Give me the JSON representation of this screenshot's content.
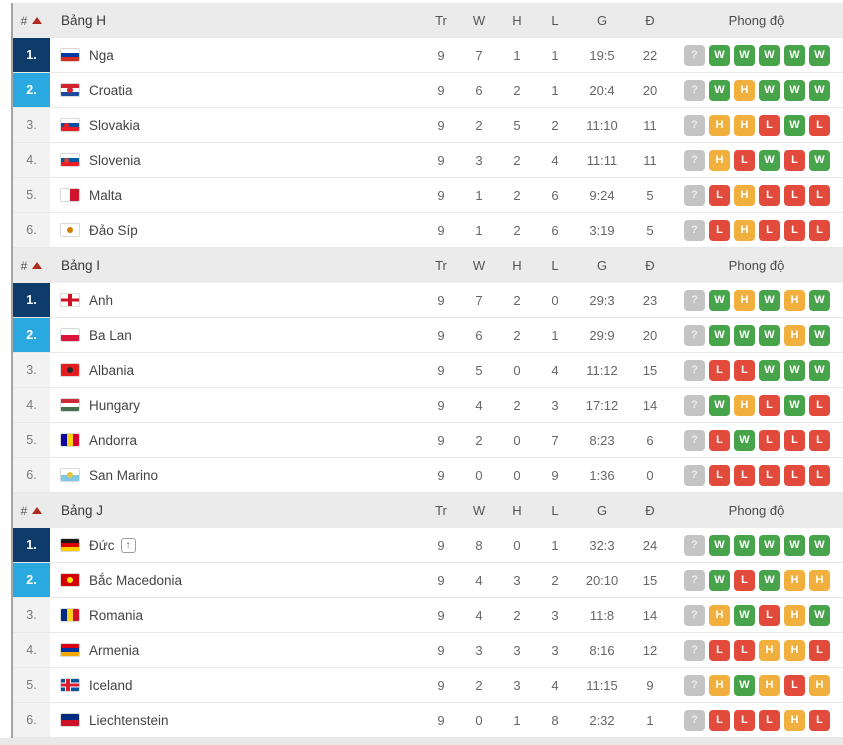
{
  "icons": {
    "promoted": "↑",
    "sort": "triangle-up"
  },
  "colors": {
    "win": "#47a44b",
    "draw": "#f1b03e",
    "loss": "#e24a3b",
    "unknown": "#c4c4c4",
    "rank1_bg": "#0d3c6b",
    "rank2_bg": "#2aa9e0",
    "sort_arrow": "#b02a22"
  },
  "table": {
    "columns": {
      "rank": "#",
      "played": "Tr",
      "wins": "W",
      "draws": "H",
      "losses": "L",
      "goals": "G",
      "points": "Đ",
      "form": "Phong độ"
    },
    "groups": [
      {
        "name": "Bảng H",
        "rows": [
          {
            "rank": "1.",
            "team": "Nga",
            "played": "9",
            "wins": "7",
            "draws": "1",
            "losses": "1",
            "goals": "19:5",
            "points": "22",
            "form": [
              "?",
              "W",
              "W",
              "W",
              "W",
              "W"
            ],
            "flag": {
              "dir": "h",
              "stripes": [
                "#ffffff",
                "#0039a6",
                "#d52b1e"
              ]
            }
          },
          {
            "rank": "2.",
            "team": "Croatia",
            "played": "9",
            "wins": "6",
            "draws": "2",
            "losses": "1",
            "goals": "20:4",
            "points": "20",
            "form": [
              "?",
              "W",
              "H",
              "W",
              "W",
              "W"
            ],
            "flag": {
              "dir": "h",
              "stripes": [
                "#d0232e",
                "#ffffff",
                "#1b4a9e"
              ],
              "badge": {
                "color": "#d0232e",
                "pos": "center"
              }
            }
          },
          {
            "rank": "3.",
            "team": "Slovakia",
            "played": "9",
            "wins": "2",
            "draws": "5",
            "losses": "2",
            "goals": "11:10",
            "points": "11",
            "form": [
              "?",
              "H",
              "H",
              "L",
              "W",
              "L"
            ],
            "flag": {
              "dir": "h",
              "stripes": [
                "#ffffff",
                "#0b4ea2",
                "#ee1c25"
              ],
              "badge": {
                "color": "#ee1c25",
                "pos": "left"
              }
            }
          },
          {
            "rank": "4.",
            "team": "Slovenia",
            "played": "9",
            "wins": "3",
            "draws": "2",
            "losses": "4",
            "goals": "11:11",
            "points": "11",
            "form": [
              "?",
              "H",
              "L",
              "W",
              "L",
              "W"
            ],
            "flag": {
              "dir": "h",
              "stripes": [
                "#ffffff",
                "#005da4",
                "#ed1c24"
              ],
              "badge": {
                "color": "#d6453d",
                "pos": "left"
              }
            }
          },
          {
            "rank": "5.",
            "team": "Malta",
            "played": "9",
            "wins": "1",
            "draws": "2",
            "losses": "6",
            "goals": "9:24",
            "points": "5",
            "form": [
              "?",
              "L",
              "H",
              "L",
              "L",
              "L"
            ],
            "flag": {
              "dir": "v",
              "stripes": [
                "#ffffff",
                "#cf142b"
              ]
            }
          },
          {
            "rank": "6.",
            "team": "Đảo Síp",
            "played": "9",
            "wins": "1",
            "draws": "2",
            "losses": "6",
            "goals": "3:19",
            "points": "5",
            "form": [
              "?",
              "L",
              "H",
              "L",
              "L",
              "L"
            ],
            "flag": {
              "dir": "h",
              "stripes": [
                "#ffffff"
              ],
              "badge": {
                "color": "#d57800",
                "pos": "center"
              }
            }
          }
        ]
      },
      {
        "name": "Bảng I",
        "rows": [
          {
            "rank": "1.",
            "team": "Anh",
            "played": "9",
            "wins": "7",
            "draws": "2",
            "losses": "0",
            "goals": "29:3",
            "points": "23",
            "form": [
              "?",
              "W",
              "H",
              "W",
              "H",
              "W"
            ],
            "flag": {
              "dir": "h",
              "stripes": [
                "#ffffff"
              ],
              "cross": {
                "inner": "#ce1124",
                "nordic": false
              }
            }
          },
          {
            "rank": "2.",
            "team": "Ba Lan",
            "played": "9",
            "wins": "6",
            "draws": "2",
            "losses": "1",
            "goals": "29:9",
            "points": "20",
            "form": [
              "?",
              "W",
              "W",
              "W",
              "H",
              "W"
            ],
            "flag": {
              "dir": "h",
              "stripes": [
                "#ffffff",
                "#dc143c"
              ]
            }
          },
          {
            "rank": "3.",
            "team": "Albania",
            "played": "9",
            "wins": "5",
            "draws": "0",
            "losses": "4",
            "goals": "11:12",
            "points": "15",
            "form": [
              "?",
              "L",
              "L",
              "W",
              "W",
              "W"
            ],
            "flag": {
              "dir": "h",
              "stripes": [
                "#e41e20"
              ],
              "badge": {
                "color": "#2b2b2b",
                "pos": "center"
              }
            }
          },
          {
            "rank": "4.",
            "team": "Hungary",
            "played": "9",
            "wins": "4",
            "draws": "2",
            "losses": "3",
            "goals": "17:12",
            "points": "14",
            "form": [
              "?",
              "W",
              "H",
              "L",
              "W",
              "L"
            ],
            "flag": {
              "dir": "h",
              "stripes": [
                "#ce2939",
                "#ffffff",
                "#477050"
              ]
            }
          },
          {
            "rank": "5.",
            "team": "Andorra",
            "played": "9",
            "wins": "2",
            "draws": "0",
            "losses": "7",
            "goals": "8:23",
            "points": "6",
            "form": [
              "?",
              "L",
              "W",
              "L",
              "L",
              "L"
            ],
            "flag": {
              "dir": "v",
              "stripes": [
                "#10069f",
                "#ffd200",
                "#d50032"
              ]
            }
          },
          {
            "rank": "6.",
            "team": "San Marino",
            "played": "9",
            "wins": "0",
            "draws": "0",
            "losses": "9",
            "goals": "1:36",
            "points": "0",
            "form": [
              "?",
              "L",
              "L",
              "L",
              "L",
              "L"
            ],
            "flag": {
              "dir": "h",
              "stripes": [
                "#ffffff",
                "#7ec8e8"
              ],
              "badge": {
                "color": "#e8c63f",
                "pos": "center"
              }
            }
          }
        ]
      },
      {
        "name": "Bảng J",
        "rows": [
          {
            "rank": "1.",
            "team": "Đức",
            "promoted": true,
            "played": "9",
            "wins": "8",
            "draws": "0",
            "losses": "1",
            "goals": "32:3",
            "points": "24",
            "form": [
              "?",
              "W",
              "W",
              "W",
              "W",
              "W"
            ],
            "flag": {
              "dir": "h",
              "stripes": [
                "#1a1a1a",
                "#dd0000",
                "#ffcc00"
              ]
            }
          },
          {
            "rank": "2.",
            "team": "Bắc Macedonia",
            "played": "9",
            "wins": "4",
            "draws": "3",
            "losses": "2",
            "goals": "20:10",
            "points": "15",
            "form": [
              "?",
              "W",
              "L",
              "W",
              "H",
              "H"
            ],
            "flag": {
              "dir": "h",
              "stripes": [
                "#d20000"
              ],
              "badge": {
                "color": "#ffe600",
                "pos": "center"
              }
            }
          },
          {
            "rank": "3.",
            "team": "Romania",
            "played": "9",
            "wins": "4",
            "draws": "2",
            "losses": "3",
            "goals": "11:8",
            "points": "14",
            "form": [
              "?",
              "H",
              "W",
              "L",
              "H",
              "W"
            ],
            "flag": {
              "dir": "v",
              "stripes": [
                "#002b7f",
                "#fcd116",
                "#ce1126"
              ]
            }
          },
          {
            "rank": "4.",
            "team": "Armenia",
            "played": "9",
            "wins": "3",
            "draws": "3",
            "losses": "3",
            "goals": "8:16",
            "points": "12",
            "form": [
              "?",
              "L",
              "L",
              "H",
              "H",
              "L"
            ],
            "flag": {
              "dir": "h",
              "stripes": [
                "#d90012",
                "#0033a0",
                "#f2a800"
              ]
            }
          },
          {
            "rank": "5.",
            "team": "Iceland",
            "played": "9",
            "wins": "2",
            "draws": "3",
            "losses": "4",
            "goals": "11:15",
            "points": "9",
            "form": [
              "?",
              "H",
              "W",
              "H",
              "L",
              "H"
            ],
            "flag": {
              "dir": "h",
              "stripes": [
                "#02529c"
              ],
              "cross": {
                "outer": "#ffffff",
                "inner": "#dc1e35",
                "nordic": true
              }
            }
          },
          {
            "rank": "6.",
            "team": "Liechtenstein",
            "played": "9",
            "wins": "0",
            "draws": "1",
            "losses": "8",
            "goals": "2:32",
            "points": "1",
            "form": [
              "?",
              "L",
              "L",
              "L",
              "H",
              "L"
            ],
            "flag": {
              "dir": "h",
              "stripes": [
                "#002b7f",
                "#ce1126"
              ]
            }
          }
        ]
      }
    ]
  }
}
